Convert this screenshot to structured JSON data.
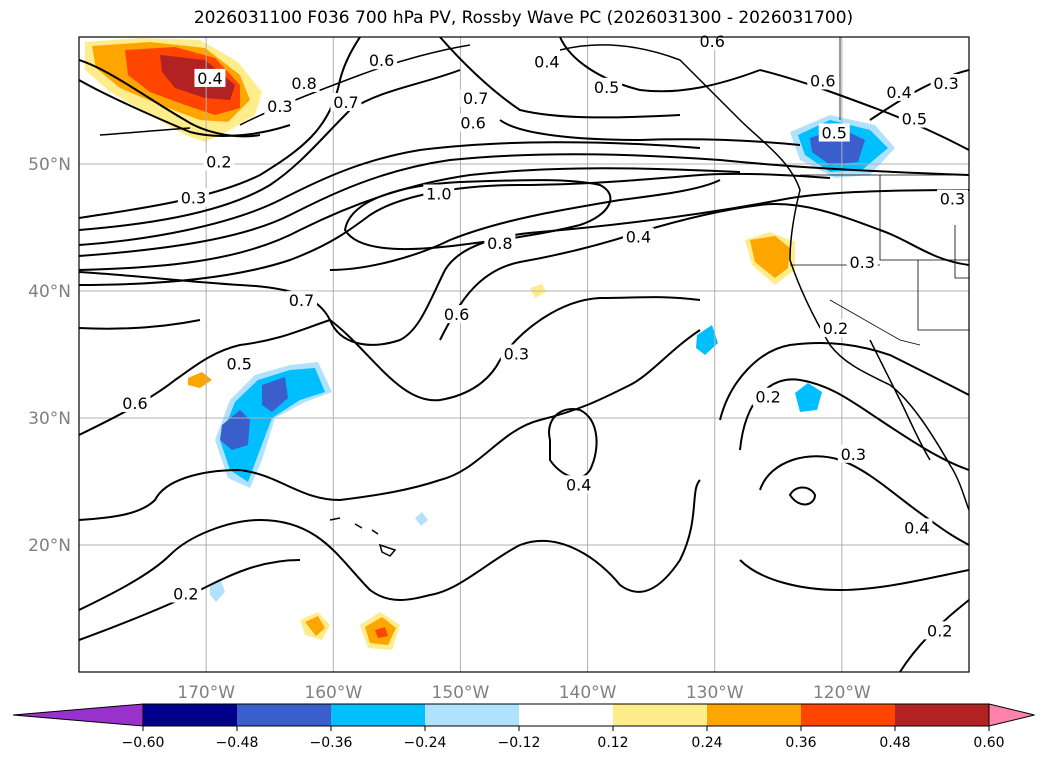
{
  "title": "2026031100 F036 700 hPa PV, Rossby Wave PC (2026031300 - 2026031700)",
  "map": {
    "projection": "PlateCarree",
    "lon_range": [
      -180,
      -110
    ],
    "lat_range": [
      10,
      60
    ],
    "gridlines": true,
    "lon_ticks": [
      {
        "lon": -170,
        "label": "170°W"
      },
      {
        "lon": -160,
        "label": "160°W"
      },
      {
        "lon": -150,
        "label": "150°W"
      },
      {
        "lon": -140,
        "label": "140°W"
      },
      {
        "lon": -130,
        "label": "130°W"
      },
      {
        "lon": -120,
        "label": "120°W"
      }
    ],
    "lat_ticks": [
      {
        "lat": 20,
        "label": "20°N"
      },
      {
        "lat": 30,
        "label": "30°N"
      },
      {
        "lat": 40,
        "label": "40°N"
      },
      {
        "lat": 50,
        "label": "50°N"
      }
    ],
    "contour_labels": [
      {
        "lon": -169.7,
        "lat": 56.7,
        "text": "0.4"
      },
      {
        "lon": -162.3,
        "lat": 56.3,
        "text": "0.8"
      },
      {
        "lon": -164.2,
        "lat": 54.5,
        "text": "0.3"
      },
      {
        "lon": -169.0,
        "lat": 50.1,
        "text": "0.2"
      },
      {
        "lon": -171.0,
        "lat": 47.3,
        "text": "0.3"
      },
      {
        "lon": -156.2,
        "lat": 58.1,
        "text": "0.6"
      },
      {
        "lon": -159.0,
        "lat": 54.8,
        "text": "0.7"
      },
      {
        "lon": -148.8,
        "lat": 55.1,
        "text": "0.7"
      },
      {
        "lon": -149.0,
        "lat": 53.2,
        "text": "0.6"
      },
      {
        "lon": -143.2,
        "lat": 58.0,
        "text": "0.4"
      },
      {
        "lon": -138.5,
        "lat": 56.0,
        "text": "0.5"
      },
      {
        "lon": -130.2,
        "lat": 59.6,
        "text": "0.6"
      },
      {
        "lon": -121.5,
        "lat": 56.5,
        "text": "0.6"
      },
      {
        "lon": -115.5,
        "lat": 55.6,
        "text": "0.4"
      },
      {
        "lon": -111.8,
        "lat": 56.3,
        "text": "0.3"
      },
      {
        "lon": -114.3,
        "lat": 53.5,
        "text": "0.5"
      },
      {
        "lon": -120.6,
        "lat": 52.4,
        "text": "0.5"
      },
      {
        "lon": -111.3,
        "lat": 47.2,
        "text": "0.3"
      },
      {
        "lon": -151.7,
        "lat": 47.6,
        "text": "1.0"
      },
      {
        "lon": -146.9,
        "lat": 43.7,
        "text": "0.8"
      },
      {
        "lon": -136.0,
        "lat": 44.2,
        "text": "0.4"
      },
      {
        "lon": -118.4,
        "lat": 42.2,
        "text": "0.3"
      },
      {
        "lon": -162.5,
        "lat": 39.2,
        "text": "0.7"
      },
      {
        "lon": -150.3,
        "lat": 38.1,
        "text": "0.6"
      },
      {
        "lon": -120.5,
        "lat": 37.0,
        "text": "0.2"
      },
      {
        "lon": -145.6,
        "lat": 35.0,
        "text": "0.3"
      },
      {
        "lon": -167.4,
        "lat": 34.2,
        "text": "0.5"
      },
      {
        "lon": -175.6,
        "lat": 31.1,
        "text": "0.6"
      },
      {
        "lon": -125.8,
        "lat": 31.6,
        "text": "0.2"
      },
      {
        "lon": -119.1,
        "lat": 27.1,
        "text": "0.3"
      },
      {
        "lon": -140.7,
        "lat": 24.7,
        "text": "0.4"
      },
      {
        "lon": -114.1,
        "lat": 21.3,
        "text": "0.4"
      },
      {
        "lon": -171.6,
        "lat": 16.1,
        "text": "0.2"
      },
      {
        "lon": -112.3,
        "lat": 13.2,
        "text": "0.2"
      }
    ]
  },
  "colorbar": {
    "levels": [
      -0.72,
      -0.6,
      -0.48,
      -0.36,
      -0.24,
      -0.12,
      0.12,
      0.24,
      0.36,
      0.48,
      0.6,
      0.72
    ],
    "extend": "both",
    "colors": [
      "#9932cc",
      "#00008b",
      "#3a5fcd",
      "#00bfff",
      "#b0e2ff",
      "#ffffff",
      "#ffec8b",
      "#ffa500",
      "#ff4500",
      "#b22222",
      "#ff82ab"
    ],
    "tick_labels": [
      "−0.60",
      "−0.48",
      "−0.36",
      "−0.24",
      "−0.12",
      "0.12",
      "0.24",
      "0.36",
      "0.48",
      "0.60"
    ]
  }
}
